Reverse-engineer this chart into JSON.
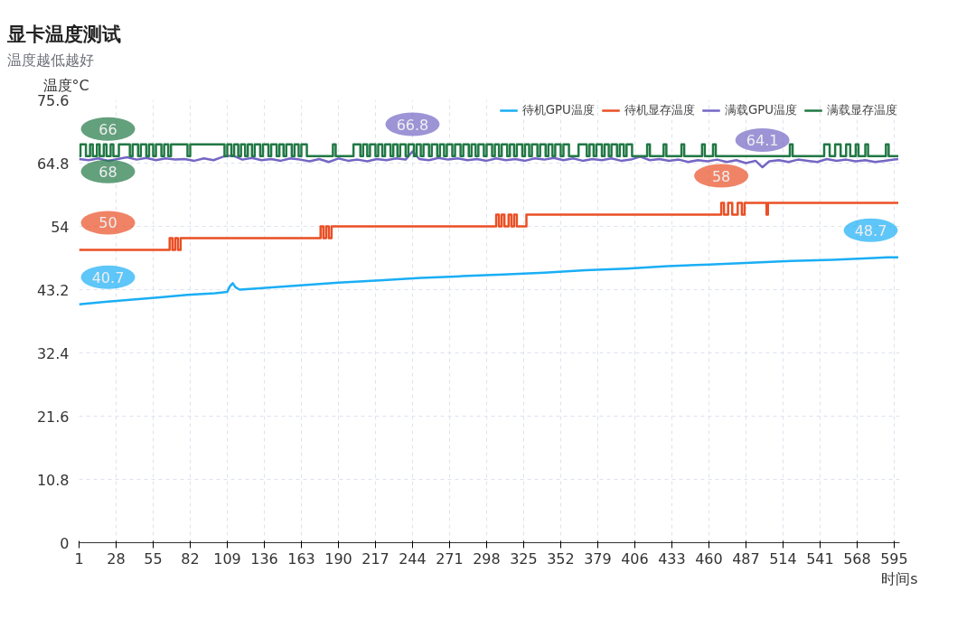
{
  "chart_data": {
    "type": "line",
    "title": "显卡温度测试",
    "subtitle": "温度越低越好",
    "xlabel": "时间s",
    "ylabel": "温度°C",
    "xlim": [
      1,
      599
    ],
    "xticks": [
      1,
      28,
      55,
      82,
      109,
      136,
      163,
      190,
      217,
      244,
      271,
      298,
      325,
      352,
      379,
      406,
      433,
      460,
      487,
      514,
      541,
      568,
      595
    ],
    "ylim": [
      0,
      75.6
    ],
    "yticks": [
      0,
      10.8,
      21.6,
      32.4,
      43.2,
      54,
      64.8,
      75.6
    ],
    "grid": true,
    "legend": "top right",
    "series": [
      {
        "name": "待机GPU温度",
        "color": "#1aaef5",
        "x": [
          1,
          20,
          40,
          60,
          80,
          100,
          109,
          111,
          113,
          115,
          118,
          130,
          160,
          190,
          220,
          250,
          280,
          310,
          340,
          370,
          400,
          430,
          460,
          490,
          520,
          550,
          580,
          590,
          598
        ],
        "values": [
          40.7,
          41.1,
          41.5,
          41.9,
          42.3,
          42.6,
          42.8,
          43.8,
          44.3,
          43.6,
          43.2,
          43.4,
          43.9,
          44.4,
          44.8,
          45.2,
          45.5,
          45.8,
          46.1,
          46.5,
          46.8,
          47.2,
          47.5,
          47.8,
          48.1,
          48.3,
          48.6,
          48.7,
          48.7
        ]
      },
      {
        "name": "待机显存温度",
        "color": "#ea4f25",
        "type": "step",
        "x": [
          1,
          67,
          69,
          71,
          73,
          75,
          177,
          179,
          181,
          183,
          185,
          305,
          307,
          309,
          311,
          314,
          316,
          318,
          320,
          327,
          469,
          471,
          474,
          477,
          481,
          484,
          486,
          502,
          503,
          598
        ],
        "values": [
          50,
          52,
          50,
          52,
          50,
          52,
          54,
          52,
          54,
          52,
          54,
          56,
          54,
          56,
          54,
          56,
          54,
          56,
          54,
          56,
          58,
          56,
          58,
          56,
          58,
          56,
          58,
          56,
          58,
          58
        ]
      },
      {
        "name": "满载GPU温度",
        "color": "#7466c4",
        "x": [
          1,
          8,
          15,
          22,
          29,
          36,
          43,
          50,
          57,
          64,
          71,
          78,
          85,
          92,
          99,
          106,
          113,
          120,
          127,
          134,
          141,
          148,
          155,
          162,
          169,
          176,
          183,
          190,
          197,
          204,
          211,
          218,
          225,
          232,
          239,
          244,
          249,
          256,
          263,
          270,
          277,
          284,
          291,
          298,
          305,
          312,
          319,
          326,
          333,
          340,
          347,
          354,
          361,
          368,
          375,
          382,
          389,
          396,
          403,
          410,
          417,
          424,
          431,
          438,
          445,
          452,
          459,
          466,
          473,
          480,
          487,
          494,
          499,
          504,
          511,
          518,
          525,
          532,
          539,
          546,
          553,
          560,
          567,
          574,
          581,
          588,
          595,
          598
        ],
        "values": [
          65.5,
          65.3,
          65.6,
          65.2,
          65.5,
          65.8,
          65.4,
          65.7,
          65.3,
          65.6,
          65.4,
          65.5,
          65.2,
          65.6,
          65.3,
          65.9,
          66.1,
          65.4,
          65.7,
          65.3,
          65.5,
          65.2,
          65.6,
          65.4,
          65.1,
          65.5,
          65.0,
          65.6,
          65.2,
          65.4,
          65.1,
          65.5,
          65.3,
          65.6,
          65.4,
          66.8,
          65.5,
          65.3,
          65.7,
          65.4,
          65.6,
          65.3,
          65.5,
          65.2,
          65.6,
          65.3,
          65.5,
          65.2,
          65.6,
          65.4,
          65.7,
          65.3,
          65.6,
          65.2,
          65.5,
          65.3,
          65.6,
          65.2,
          65.4,
          65.9,
          65.3,
          65.5,
          65.2,
          65.4,
          65.0,
          65.3,
          65.1,
          65.4,
          65.0,
          65.3,
          64.8,
          65.2,
          64.1,
          65.1,
          65.3,
          65.0,
          65.4,
          65.2,
          65.0,
          65.5,
          65.2,
          65.4,
          65.1,
          65.3,
          65.0,
          65.2,
          65.4,
          65.5
        ]
      },
      {
        "name": "满载显存温度",
        "color": "#217844",
        "type": "step",
        "x": [
          1,
          2,
          6,
          9,
          11,
          14,
          16,
          19,
          21,
          24,
          26,
          30,
          38,
          40,
          44,
          46,
          50,
          52,
          55,
          57,
          61,
          63,
          66,
          68,
          80,
          82,
          107,
          109,
          112,
          114,
          117,
          119,
          122,
          124,
          127,
          129,
          133,
          135,
          139,
          141,
          145,
          147,
          150,
          152,
          156,
          158,
          161,
          163,
          167,
          186,
          188,
          201,
          206,
          208,
          211,
          213,
          217,
          219,
          222,
          224,
          228,
          230,
          233,
          235,
          239,
          241,
          245,
          247,
          250,
          252,
          256,
          258,
          262,
          264,
          267,
          269,
          273,
          275,
          279,
          281,
          285,
          287,
          290,
          292,
          296,
          298,
          302,
          304,
          307,
          309,
          313,
          315,
          318,
          320,
          324,
          326,
          329,
          331,
          335,
          337,
          341,
          343,
          346,
          348,
          352,
          354,
          358,
          365,
          371,
          373,
          376,
          378,
          382,
          384,
          387,
          389,
          393,
          395,
          398,
          400,
          404,
          415,
          417,
          427,
          429,
          440,
          442,
          455,
          457,
          463,
          465,
          519,
          521,
          544,
          548,
          552,
          556,
          560,
          563,
          567,
          569,
          574,
          576,
          589,
          591,
          598
        ],
        "values": [
          66,
          68,
          66,
          68,
          66,
          68,
          66,
          68,
          66,
          68,
          66,
          68,
          66,
          68,
          66,
          68,
          66,
          68,
          66,
          68,
          66,
          68,
          66,
          68,
          66,
          68,
          66,
          68,
          66,
          68,
          66,
          68,
          66,
          68,
          66,
          68,
          66,
          68,
          66,
          68,
          66,
          68,
          66,
          68,
          66,
          68,
          66,
          68,
          66,
          68,
          66,
          68,
          66,
          68,
          66,
          68,
          66,
          68,
          66,
          68,
          66,
          68,
          66,
          68,
          66,
          68,
          66,
          68,
          66,
          68,
          66,
          68,
          66,
          68,
          66,
          68,
          66,
          68,
          66,
          68,
          66,
          68,
          66,
          68,
          66,
          68,
          66,
          68,
          66,
          68,
          66,
          68,
          66,
          68,
          66,
          68,
          66,
          68,
          66,
          68,
          66,
          68,
          66,
          68,
          66,
          68,
          66,
          68,
          66,
          68,
          66,
          68,
          66,
          68,
          66,
          68,
          66,
          68,
          66,
          68,
          66,
          68,
          66,
          68,
          66,
          68,
          66,
          68,
          66,
          68,
          66,
          68,
          66,
          68,
          66,
          68,
          66,
          68,
          66,
          68,
          66,
          68,
          66,
          68,
          66,
          66
        ]
      }
    ],
    "annotations": [
      {
        "text": "40.7",
        "x": 1,
        "y": 40.7
      },
      {
        "text": "48.7",
        "x": 590,
        "y": 48.7
      },
      {
        "text": "50",
        "x": 1,
        "y": 50
      },
      {
        "text": "58",
        "x": 469,
        "y": 58
      },
      {
        "text": "66.8",
        "x": 244,
        "y": 66.8
      },
      {
        "text": "64.1",
        "x": 499,
        "y": 64.1
      },
      {
        "text": "66",
        "x": 1,
        "y": 66
      },
      {
        "text": "68",
        "x": 2,
        "y": 68
      }
    ]
  }
}
